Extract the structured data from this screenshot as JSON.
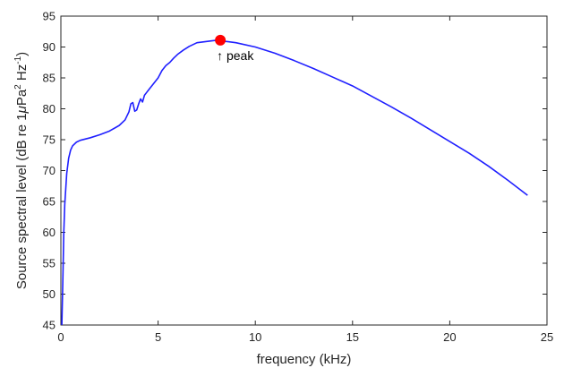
{
  "chart_data": {
    "type": "line",
    "xlabel": "frequency (kHz)",
    "ylabel_parts": {
      "main": "Source spectral level (dB re 1",
      "mu": "μ",
      "pa": "Pa",
      "pa_exp": "2",
      "hz": " Hz",
      "hz_exp": "-1",
      "close": ")"
    },
    "xlim": [
      0,
      25
    ],
    "ylim": [
      45,
      95
    ],
    "xticks": [
      0,
      5,
      10,
      15,
      20,
      25
    ],
    "yticks": [
      45,
      50,
      55,
      60,
      65,
      70,
      75,
      80,
      85,
      90,
      95
    ],
    "grid": false,
    "series": [
      {
        "color": "#1f1fff",
        "x": [
          0.05,
          0.1,
          0.15,
          0.2,
          0.3,
          0.4,
          0.5,
          0.6,
          0.8,
          1.0,
          1.5,
          2.0,
          2.5,
          3.0,
          3.3,
          3.5,
          3.6,
          3.7,
          3.8,
          3.9,
          4.0,
          4.1,
          4.2,
          4.3,
          4.4,
          4.5,
          4.7,
          5.0,
          5.2,
          5.4,
          5.6,
          5.8,
          6.0,
          6.3,
          6.6,
          7.0,
          7.5,
          8.0,
          8.2,
          8.5,
          9.0,
          10.0,
          11.0,
          12.0,
          13.0,
          14.0,
          15.0,
          16.0,
          17.0,
          18.0,
          19.0,
          20.0,
          21.0,
          22.0,
          23.0,
          24.0
        ],
        "y": [
          45.0,
          52.0,
          60.0,
          64.5,
          69.5,
          72.0,
          73.3,
          74.0,
          74.6,
          74.9,
          75.3,
          75.8,
          76.4,
          77.3,
          78.2,
          79.5,
          80.8,
          81.0,
          79.6,
          79.8,
          80.8,
          81.6,
          81.1,
          82.2,
          82.6,
          83.0,
          83.8,
          85.0,
          86.2,
          87.0,
          87.5,
          88.2,
          88.8,
          89.5,
          90.1,
          90.7,
          90.9,
          91.1,
          91.1,
          90.9,
          90.7,
          90.0,
          89.0,
          87.8,
          86.5,
          85.1,
          83.7,
          82.0,
          80.3,
          78.5,
          76.6,
          74.7,
          72.8,
          70.7,
          68.4,
          66.0
        ]
      }
    ],
    "peak": {
      "x": 8.2,
      "y": 91.1,
      "color": "#ff0000",
      "label": "↑ peak"
    }
  }
}
